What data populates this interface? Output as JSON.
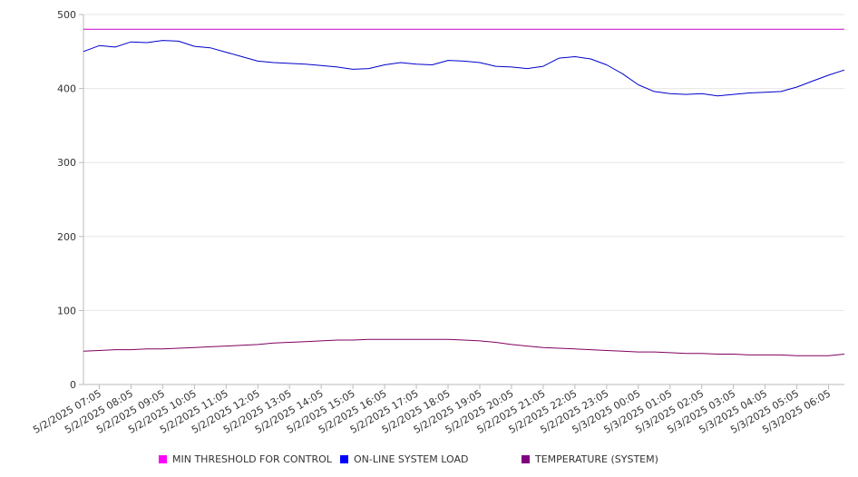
{
  "chart_data": {
    "type": "line",
    "title": "",
    "xlabel": "",
    "ylabel": "",
    "ylim": [
      0,
      500
    ],
    "yticks": [
      0,
      100,
      200,
      300,
      400,
      500
    ],
    "grid": true,
    "legend_position": "bottom",
    "x_tick_labels": [
      "5/2/2025 07:05",
      "5/2/2025 08:05",
      "5/2/2025 09:05",
      "5/2/2025 10:05",
      "5/2/2025 11:05",
      "5/2/2025 12:05",
      "5/2/2025 13:05",
      "5/2/2025 14:05",
      "5/2/2025 15:05",
      "5/2/2025 16:05",
      "5/2/2025 17:05",
      "5/2/2025 18:05",
      "5/2/2025 19:05",
      "5/2/2025 20:05",
      "5/2/2025 21:05",
      "5/2/2025 22:05",
      "5/2/2025 23:05",
      "5/3/2025 00:05",
      "5/3/2025 01:05",
      "5/3/2025 02:05",
      "5/3/2025 03:05",
      "5/3/2025 04:05",
      "5/3/2025 05:05",
      "5/3/2025 06:05"
    ],
    "x": [
      "5/2/2025 06:35",
      "5/2/2025 07:05",
      "5/2/2025 07:35",
      "5/2/2025 08:05",
      "5/2/2025 08:35",
      "5/2/2025 09:05",
      "5/2/2025 09:35",
      "5/2/2025 10:05",
      "5/2/2025 10:35",
      "5/2/2025 11:05",
      "5/2/2025 11:35",
      "5/2/2025 12:05",
      "5/2/2025 12:35",
      "5/2/2025 13:05",
      "5/2/2025 13:35",
      "5/2/2025 14:05",
      "5/2/2025 14:35",
      "5/2/2025 15:05",
      "5/2/2025 15:35",
      "5/2/2025 16:05",
      "5/2/2025 16:35",
      "5/2/2025 17:05",
      "5/2/2025 17:35",
      "5/2/2025 18:05",
      "5/2/2025 18:35",
      "5/2/2025 19:05",
      "5/2/2025 19:35",
      "5/2/2025 20:05",
      "5/2/2025 20:35",
      "5/2/2025 21:05",
      "5/2/2025 21:35",
      "5/2/2025 22:05",
      "5/2/2025 22:35",
      "5/2/2025 23:05",
      "5/2/2025 23:35",
      "5/3/2025 00:05",
      "5/3/2025 00:35",
      "5/3/2025 01:05",
      "5/3/2025 01:35",
      "5/3/2025 02:05",
      "5/3/2025 02:35",
      "5/3/2025 03:05",
      "5/3/2025 03:35",
      "5/3/2025 04:05",
      "5/3/2025 04:35",
      "5/3/2025 05:05",
      "5/3/2025 05:35",
      "5/3/2025 06:05",
      "5/3/2025 06:35"
    ],
    "series": [
      {
        "name": "MIN THRESHOLD FOR CONTROL",
        "color": "#cc00cc",
        "legend_color": "#ff00ff",
        "values": [
          480,
          480,
          480,
          480,
          480,
          480,
          480,
          480,
          480,
          480,
          480,
          480,
          480,
          480,
          480,
          480,
          480,
          480,
          480,
          480,
          480,
          480,
          480,
          480,
          480,
          480,
          480,
          480,
          480,
          480,
          480,
          480,
          480,
          480,
          480,
          480,
          480,
          480,
          480,
          480,
          480,
          480,
          480,
          480,
          480,
          480,
          480,
          480,
          480
        ]
      },
      {
        "name": "ON-LINE SYSTEM LOAD",
        "color": "#0000cc",
        "legend_color": "#0000ff",
        "values": [
          450,
          458,
          456,
          463,
          462,
          465,
          464,
          457,
          455,
          449,
          443,
          437,
          435,
          434,
          433,
          431,
          429,
          426,
          427,
          432,
          435,
          433,
          432,
          438,
          437,
          435,
          430,
          429,
          427,
          430,
          441,
          443,
          440,
          432,
          420,
          405,
          396,
          393,
          392,
          393,
          390,
          392,
          394,
          395,
          396,
          402,
          410,
          418,
          425
        ]
      },
      {
        "name": "TEMPERATURE (SYSTEM)",
        "color": "#800060",
        "legend_color": "#800080",
        "values": [
          45,
          46,
          47,
          47,
          48,
          48,
          49,
          50,
          51,
          52,
          53,
          54,
          56,
          57,
          58,
          59,
          60,
          60,
          61,
          61,
          61,
          61,
          61,
          61,
          60,
          59,
          57,
          54,
          52,
          50,
          49,
          48,
          47,
          46,
          45,
          44,
          44,
          43,
          42,
          42,
          41,
          41,
          40,
          40,
          40,
          39,
          39,
          39,
          41
        ]
      }
    ]
  }
}
